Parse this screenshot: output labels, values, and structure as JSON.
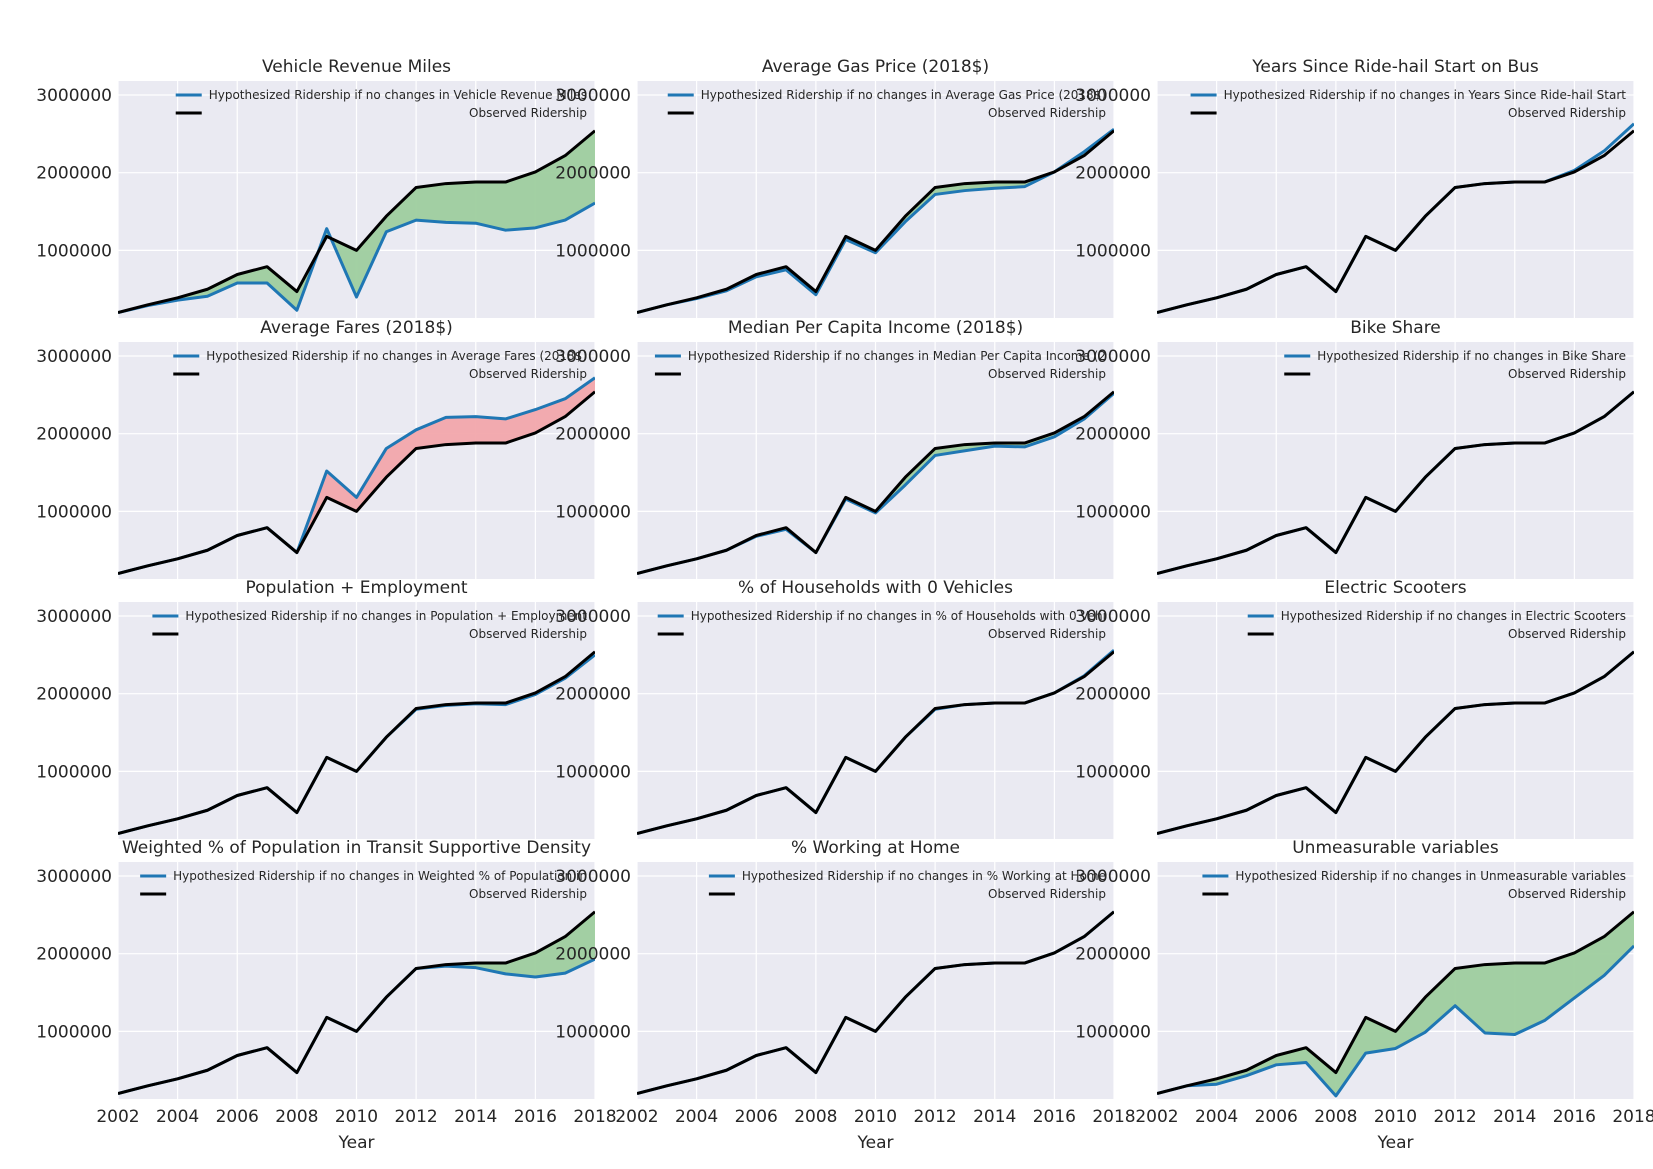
{
  "colors": {
    "background": "#eaeaf2",
    "grid": "#ffffff",
    "hypothesized": "#1f77b4",
    "observed": "#000000",
    "fill_positive": "#9ecd9e",
    "fill_negative": "#f2a7ab"
  },
  "chart_data": {
    "type": "line",
    "layout": {
      "rows": 4,
      "cols": 3
    },
    "years": [
      2002,
      2003,
      2004,
      2005,
      2006,
      2007,
      2008,
      2009,
      2010,
      2011,
      2012,
      2013,
      2014,
      2015,
      2016,
      2017,
      2018
    ],
    "observed": [
      200000,
      300000,
      390000,
      500000,
      690000,
      790000,
      470000,
      1180000,
      1000000,
      1440000,
      1810000,
      1860000,
      1880000,
      1880000,
      2010000,
      2220000,
      2540000
    ],
    "xlim": [
      2002,
      2018
    ],
    "ylim": [
      130000,
      3180000
    ],
    "x_ticks": [
      2002,
      2004,
      2006,
      2008,
      2010,
      2012,
      2014,
      2016,
      2018
    ],
    "y_ticks": [
      1000000,
      2000000,
      3000000
    ],
    "y_tick_labels": [
      "1000000",
      "2000000",
      "3000000"
    ],
    "x_tick_labels": [
      "2002",
      "2004",
      "2006",
      "2008",
      "2010",
      "2012",
      "2014",
      "2016",
      "2018"
    ],
    "xlabel": "Year",
    "panels": [
      {
        "title": "Vehicle Revenue Miles",
        "legend": [
          "Hypothesized Ridership if no changes in Vehicle Revenue Miles",
          "Observed Ridership"
        ],
        "fill": "positive",
        "hypothesized": [
          200000,
          290000,
          360000,
          410000,
          580000,
          580000,
          230000,
          1280000,
          400000,
          1240000,
          1390000,
          1360000,
          1350000,
          1260000,
          1290000,
          1390000,
          1610000
        ]
      },
      {
        "title": "Average Gas Price (2018$)",
        "legend": [
          "Hypothesized Ridership if no changes in Average Gas Price (2018$)",
          "Observed Ridership"
        ],
        "fill": "positive",
        "hypothesized": [
          200000,
          300000,
          380000,
          480000,
          660000,
          750000,
          430000,
          1140000,
          970000,
          1370000,
          1720000,
          1770000,
          1800000,
          1820000,
          2010000,
          2270000,
          2560000
        ]
      },
      {
        "title": "Years Since Ride-hail Start on Bus",
        "legend": [
          "Hypothesized Ridership if no changes in Years Since Ride-hail Start",
          "Observed Ridership"
        ],
        "fill": "none",
        "hypothesized": [
          200000,
          300000,
          390000,
          500000,
          690000,
          790000,
          470000,
          1180000,
          1000000,
          1440000,
          1810000,
          1860000,
          1880000,
          1880000,
          2030000,
          2280000,
          2630000
        ]
      },
      {
        "title": "Average Fares (2018$)",
        "legend": [
          "Hypothesized Ridership if no changes in Average Fares (2018$)",
          "Observed Ridership"
        ],
        "fill": "negative",
        "hypothesized": [
          200000,
          300000,
          390000,
          500000,
          690000,
          790000,
          470000,
          1520000,
          1180000,
          1810000,
          2050000,
          2210000,
          2220000,
          2190000,
          2310000,
          2450000,
          2720000
        ]
      },
      {
        "title": "Median Per Capita Income (2018$)",
        "legend": [
          "Hypothesized Ridership if no changes in Median Per Capita Income (2",
          "Observed Ridership"
        ],
        "fill": "positive",
        "hypothesized": [
          200000,
          300000,
          390000,
          500000,
          680000,
          770000,
          470000,
          1160000,
          980000,
          1340000,
          1720000,
          1780000,
          1840000,
          1830000,
          1960000,
          2190000,
          2520000
        ]
      },
      {
        "title": "Bike Share",
        "legend": [
          "Hypothesized Ridership if no changes in Bike Share",
          "Observed Ridership"
        ],
        "fill": "none",
        "hypothesized": [
          200000,
          300000,
          390000,
          500000,
          690000,
          790000,
          470000,
          1180000,
          1000000,
          1440000,
          1810000,
          1860000,
          1880000,
          1880000,
          2010000,
          2220000,
          2540000
        ]
      },
      {
        "title": "Population + Employment",
        "legend": [
          "Hypothesized Ridership if no changes in Population + Employment",
          "Observed Ridership"
        ],
        "fill": "none",
        "hypothesized": [
          200000,
          300000,
          390000,
          500000,
          690000,
          790000,
          470000,
          1180000,
          1000000,
          1440000,
          1800000,
          1850000,
          1870000,
          1860000,
          1990000,
          2200000,
          2500000
        ]
      },
      {
        "title": "% of Households with 0 Vehicles",
        "legend": [
          "Hypothesized Ridership if no changes in % of Households with 0 Vehi",
          "Observed Ridership"
        ],
        "fill": "none",
        "hypothesized": [
          200000,
          300000,
          390000,
          500000,
          690000,
          790000,
          470000,
          1180000,
          1000000,
          1440000,
          1800000,
          1860000,
          1880000,
          1880000,
          2010000,
          2230000,
          2560000
        ]
      },
      {
        "title": "Electric Scooters",
        "legend": [
          "Hypothesized Ridership if no changes in Electric Scooters",
          "Observed Ridership"
        ],
        "fill": "none",
        "hypothesized": [
          200000,
          300000,
          390000,
          500000,
          690000,
          790000,
          470000,
          1180000,
          1000000,
          1440000,
          1810000,
          1860000,
          1880000,
          1880000,
          2010000,
          2220000,
          2540000
        ]
      },
      {
        "title": "Weighted % of Population in Transit Supportive Density",
        "legend": [
          "Hypothesized Ridership if no changes in Weighted % of Population in",
          "Observed Ridership"
        ],
        "fill": "positive",
        "hypothesized": [
          200000,
          300000,
          390000,
          500000,
          690000,
          790000,
          470000,
          1180000,
          1000000,
          1440000,
          1810000,
          1840000,
          1820000,
          1740000,
          1700000,
          1750000,
          1930000
        ]
      },
      {
        "title": "% Working at Home",
        "legend": [
          "Hypothesized Ridership if no changes in % Working at Home",
          "Observed Ridership"
        ],
        "fill": "none",
        "hypothesized": [
          200000,
          300000,
          390000,
          500000,
          690000,
          790000,
          470000,
          1180000,
          1000000,
          1440000,
          1810000,
          1860000,
          1880000,
          1880000,
          2010000,
          2220000,
          2540000
        ]
      },
      {
        "title": "Unmeasurable variables",
        "legend": [
          "Hypothesized Ridership if no changes in Unmeasurable variables",
          "Observed Ridership"
        ],
        "fill": "positive",
        "hypothesized": [
          200000,
          300000,
          320000,
          430000,
          570000,
          600000,
          170000,
          720000,
          780000,
          990000,
          1330000,
          980000,
          960000,
          1140000,
          1430000,
          1720000,
          2100000
        ]
      }
    ]
  }
}
